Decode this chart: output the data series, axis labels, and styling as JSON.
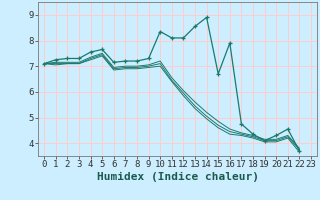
{
  "title": "",
  "xlabel": "Humidex (Indice chaleur)",
  "bg_color": "#cceeff",
  "grid_color": "#ffcccc",
  "line_color": "#1a7a6e",
  "xlim": [
    -0.5,
    23.5
  ],
  "ylim": [
    3.5,
    9.5
  ],
  "xticks": [
    0,
    1,
    2,
    3,
    4,
    5,
    6,
    7,
    8,
    9,
    10,
    11,
    12,
    13,
    14,
    15,
    16,
    17,
    18,
    19,
    20,
    21,
    22,
    23
  ],
  "yticks": [
    4,
    5,
    6,
    7,
    8,
    9
  ],
  "series": [
    [
      7.1,
      7.25,
      7.3,
      7.3,
      7.55,
      7.65,
      7.15,
      7.2,
      7.2,
      7.3,
      8.35,
      8.1,
      8.1,
      8.55,
      8.9,
      6.7,
      7.9,
      4.75,
      4.35,
      4.1,
      4.3,
      4.55,
      3.7
    ],
    [
      7.1,
      7.15,
      7.15,
      7.15,
      7.35,
      7.5,
      6.95,
      7.0,
      7.0,
      7.05,
      7.2,
      6.55,
      6.05,
      5.6,
      5.2,
      4.85,
      4.55,
      4.4,
      4.3,
      4.15,
      4.15,
      4.3,
      3.8
    ],
    [
      7.1,
      7.1,
      7.1,
      7.1,
      7.3,
      7.45,
      6.9,
      6.95,
      6.95,
      7.0,
      7.1,
      6.45,
      5.95,
      5.45,
      5.05,
      4.7,
      4.45,
      4.35,
      4.25,
      4.1,
      4.1,
      4.25,
      3.75
    ],
    [
      7.1,
      7.05,
      7.1,
      7.1,
      7.25,
      7.4,
      6.85,
      6.9,
      6.9,
      6.95,
      7.0,
      6.4,
      5.85,
      5.35,
      4.95,
      4.6,
      4.35,
      4.3,
      4.2,
      4.05,
      4.05,
      4.2,
      3.65
    ]
  ],
  "font_family": "monospace",
  "tick_fontsize": 6.5,
  "label_fontsize": 8.0
}
